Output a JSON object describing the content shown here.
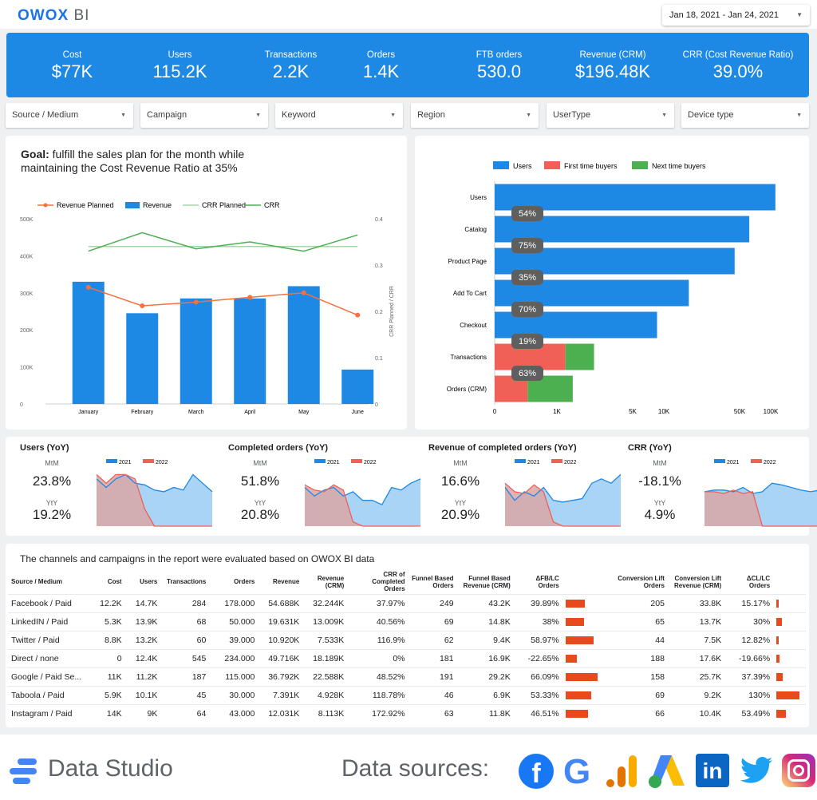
{
  "app": {
    "logo_main": "OWOX",
    "logo_sub": "BI",
    "date_range": "Jan 18, 2021 - Jan 24, 2021"
  },
  "kpis": [
    {
      "label": "Cost",
      "value": "$77K"
    },
    {
      "label": "Users",
      "value": "115.2K"
    },
    {
      "label": "Transactions",
      "value": "2.2K"
    },
    {
      "label": "Orders",
      "value": "1.4K"
    },
    {
      "label": "FTB orders",
      "value": "530.0"
    },
    {
      "label": "Revenue (CRM)",
      "value": "$196.48K"
    },
    {
      "label": "CRR (Cost Revenue Ratio)",
      "value": "39.0%"
    }
  ],
  "filters": [
    "Source / Medium",
    "Campaign",
    "Keyword",
    "Region",
    "UserType",
    "Device type"
  ],
  "goal": {
    "bold": "Goal:",
    "text": " fulfill the sales plan for the month while maintaining the Cost Revenue Ratio at 35%"
  },
  "colors": {
    "primary": "#1e88e5",
    "orange": "#f4713b",
    "green": "#4caf50",
    "light_green": "#a5d6a7",
    "red": "#f06057",
    "area_red": "#d9a6a6",
    "area_blue": "#aad4f5",
    "bar_red": "#e8491d"
  },
  "chart_data": [
    {
      "type": "bar",
      "title": "",
      "legend": [
        "Revenue Planned",
        "Revenue",
        "CRR Planned",
        "CRR"
      ],
      "categories": [
        "January",
        "February",
        "March",
        "April",
        "May",
        "June"
      ],
      "series": [
        {
          "name": "Revenue",
          "values": [
            330000,
            245000,
            285000,
            285000,
            318000,
            93000
          ]
        },
        {
          "name": "Revenue Planned",
          "values": [
            315000,
            265000,
            275000,
            288000,
            300000,
            240000
          ]
        },
        {
          "name": "CRR Planned",
          "values": [
            0.34,
            0.34,
            0.34,
            0.34,
            0.34,
            0.34
          ]
        },
        {
          "name": "CRR",
          "values": [
            0.33,
            0.37,
            0.335,
            0.35,
            0.33,
            0.365
          ]
        }
      ],
      "ylim": [
        0,
        500000
      ],
      "y2lim": [
        0,
        0.4
      ],
      "ylabel": "",
      "y2label": "CRR Planned / CRR",
      "yticks": [
        "0",
        "100K",
        "200K",
        "300K",
        "400K",
        "500K"
      ],
      "y2ticks": [
        "0",
        "0.1",
        "0.2",
        "0.3",
        "0.4"
      ],
      "legend_position": "top"
    },
    {
      "type": "bar",
      "orientation": "horizontal",
      "scale": "log",
      "legend": [
        "Users",
        "First time buyers",
        "Next time buyers"
      ],
      "categories": [
        "Users",
        "Catalog",
        "Product Page",
        "Add To Cart",
        "Checkout",
        "Transactions",
        "Orders (CRM)"
      ],
      "series": [
        {
          "name": "Users",
          "values": [
            115200,
            62000,
            45000,
            17000,
            8600,
            null,
            null
          ]
        },
        {
          "name": "First time buyers",
          "values": [
            null,
            null,
            null,
            null,
            null,
            1200,
            530
          ]
        },
        {
          "name": "Next time buyers",
          "values": [
            null,
            null,
            null,
            null,
            null,
            1000,
            870
          ]
        }
      ],
      "conversion_labels": [
        "54%",
        "75%",
        "35%",
        "70%",
        "19%",
        "63%"
      ],
      "xticks": [
        "0",
        "1K",
        "5K",
        "10K",
        "50K",
        "100K"
      ],
      "legend_position": "top"
    }
  ],
  "mini": [
    {
      "title": "Users (YoY)",
      "mtm_label": "MtM",
      "mtm": "23.8%",
      "yty_label": "YtY",
      "yty": "19.2%",
      "legend": [
        "2021",
        "2022"
      ],
      "s2021": [
        0.55,
        0.45,
        0.55,
        0.6,
        0.5,
        0.48,
        0.42,
        0.4,
        0.45,
        0.42,
        0.6,
        0.5,
        0.4
      ],
      "s2022": [
        0.6,
        0.5,
        0.6,
        0.6,
        0.55,
        0.2,
        0,
        0,
        0,
        0,
        0,
        0,
        0
      ]
    },
    {
      "title": "Completed orders (YoY)",
      "mtm_label": "MtM",
      "mtm": "51.8%",
      "yty_label": "YtY",
      "yty": "20.8%",
      "legend": [
        "2021",
        "2022"
      ],
      "s2021": [
        0.45,
        0.35,
        0.42,
        0.45,
        0.35,
        0.4,
        0.3,
        0.3,
        0.25,
        0.45,
        0.42,
        0.5,
        0.55
      ],
      "s2022": [
        0.48,
        0.42,
        0.4,
        0.48,
        0.42,
        0.05,
        0,
        0,
        0,
        0,
        0,
        0,
        0
      ]
    },
    {
      "title": "Revenue of completed orders (YoY)",
      "mtm_label": "MtM",
      "mtm": "16.6%",
      "yty_label": "YtY",
      "yty": "20.9%",
      "legend": [
        "2021",
        "2022"
      ],
      "s2021": [
        0.45,
        0.3,
        0.4,
        0.35,
        0.45,
        0.3,
        0.28,
        0.3,
        0.32,
        0.5,
        0.55,
        0.5,
        0.6
      ],
      "s2022": [
        0.5,
        0.4,
        0.38,
        0.48,
        0.4,
        0.05,
        0,
        0,
        0,
        0,
        0,
        0,
        0
      ]
    },
    {
      "title": "CRR (YoY)",
      "mtm_label": "MtM",
      "mtm": "-18.1%",
      "yty_label": "YtY",
      "yty": "4.9%",
      "legend": [
        "2021",
        "2022"
      ],
      "s2021": [
        0.4,
        0.42,
        0.42,
        0.4,
        0.45,
        0.38,
        0.4,
        0.5,
        0.48,
        0.45,
        0.42,
        0.4,
        0.42
      ],
      "s2022": [
        0.4,
        0.4,
        0.38,
        0.42,
        0.38,
        0.4,
        0,
        0,
        0,
        0,
        0,
        0,
        0
      ]
    }
  ],
  "table": {
    "caption": "The channels and campaigns in the report were evaluated based on OWOX BI data",
    "headers": [
      "Source / Medium",
      "Cost",
      "Users",
      "Transactions",
      "Orders",
      "Revenue",
      "Revenue (CRM)",
      "CRR of Completed Orders",
      "Funnel Based Orders",
      "Funnel Based Revenue (CRM)",
      "ΔFB/LC Orders",
      "",
      "Conversion Lift Orders",
      "Conversion Lift Revenue (CRM)",
      "ΔCL/LC Orders",
      ""
    ],
    "rows": [
      {
        "cells": [
          "Facebook / Paid",
          "12.2K",
          "14.7K",
          "284",
          "178.000",
          "54.688K",
          "32.244K",
          "37.97%",
          "249",
          "43.2K",
          "39.89%",
          "205",
          "33.8K",
          "15.17%"
        ],
        "fb": 39.89,
        "cl": 15.17
      },
      {
        "cells": [
          "LinkedIN / Paid",
          "5.3K",
          "13.9K",
          "68",
          "50.000",
          "19.631K",
          "13.009K",
          "40.56%",
          "69",
          "14.8K",
          "38%",
          "65",
          "13.7K",
          "30%"
        ],
        "fb": 38,
        "cl": 30
      },
      {
        "cells": [
          "Twitter / Paid",
          "8.8K",
          "13.2K",
          "60",
          "39.000",
          "10.920K",
          "7.533K",
          "116.9%",
          "62",
          "9.4K",
          "58.97%",
          "44",
          "7.5K",
          "12.82%"
        ],
        "fb": 58.97,
        "cl": 12.82
      },
      {
        "cells": [
          "Direct / none",
          "0",
          "12.4K",
          "545",
          "234.000",
          "49.716K",
          "18.189K",
          "0%",
          "181",
          "16.9K",
          "-22.65%",
          "188",
          "17.6K",
          "-19.66%"
        ],
        "fb": -22.65,
        "cl": -19.66
      },
      {
        "cells": [
          "Google / Paid Se...",
          "11K",
          "11.2K",
          "187",
          "115.000",
          "36.792K",
          "22.588K",
          "48.52%",
          "191",
          "29.2K",
          "66.09%",
          "158",
          "25.7K",
          "37.39%"
        ],
        "fb": 66.09,
        "cl": 37.39
      },
      {
        "cells": [
          "Taboola / Paid",
          "5.9K",
          "10.1K",
          "45",
          "30.000",
          "7.391K",
          "4.928K",
          "118.78%",
          "46",
          "6.9K",
          "53.33%",
          "69",
          "9.2K",
          "130%"
        ],
        "fb": 53.33,
        "cl": 130
      },
      {
        "cells": [
          "Instagram / Paid",
          "14K",
          "9K",
          "64",
          "43.000",
          "12.031K",
          "8.113K",
          "172.92%",
          "63",
          "11.8K",
          "46.51%",
          "66",
          "10.4K",
          "53.49%"
        ],
        "fb": 46.51,
        "cl": 53.49
      }
    ]
  },
  "footer": {
    "data_studio": "Data Studio",
    "data_sources": "Data sources:",
    "logo_facebook": "f",
    "logo_google": "G",
    "logo_linkedin": "in"
  }
}
